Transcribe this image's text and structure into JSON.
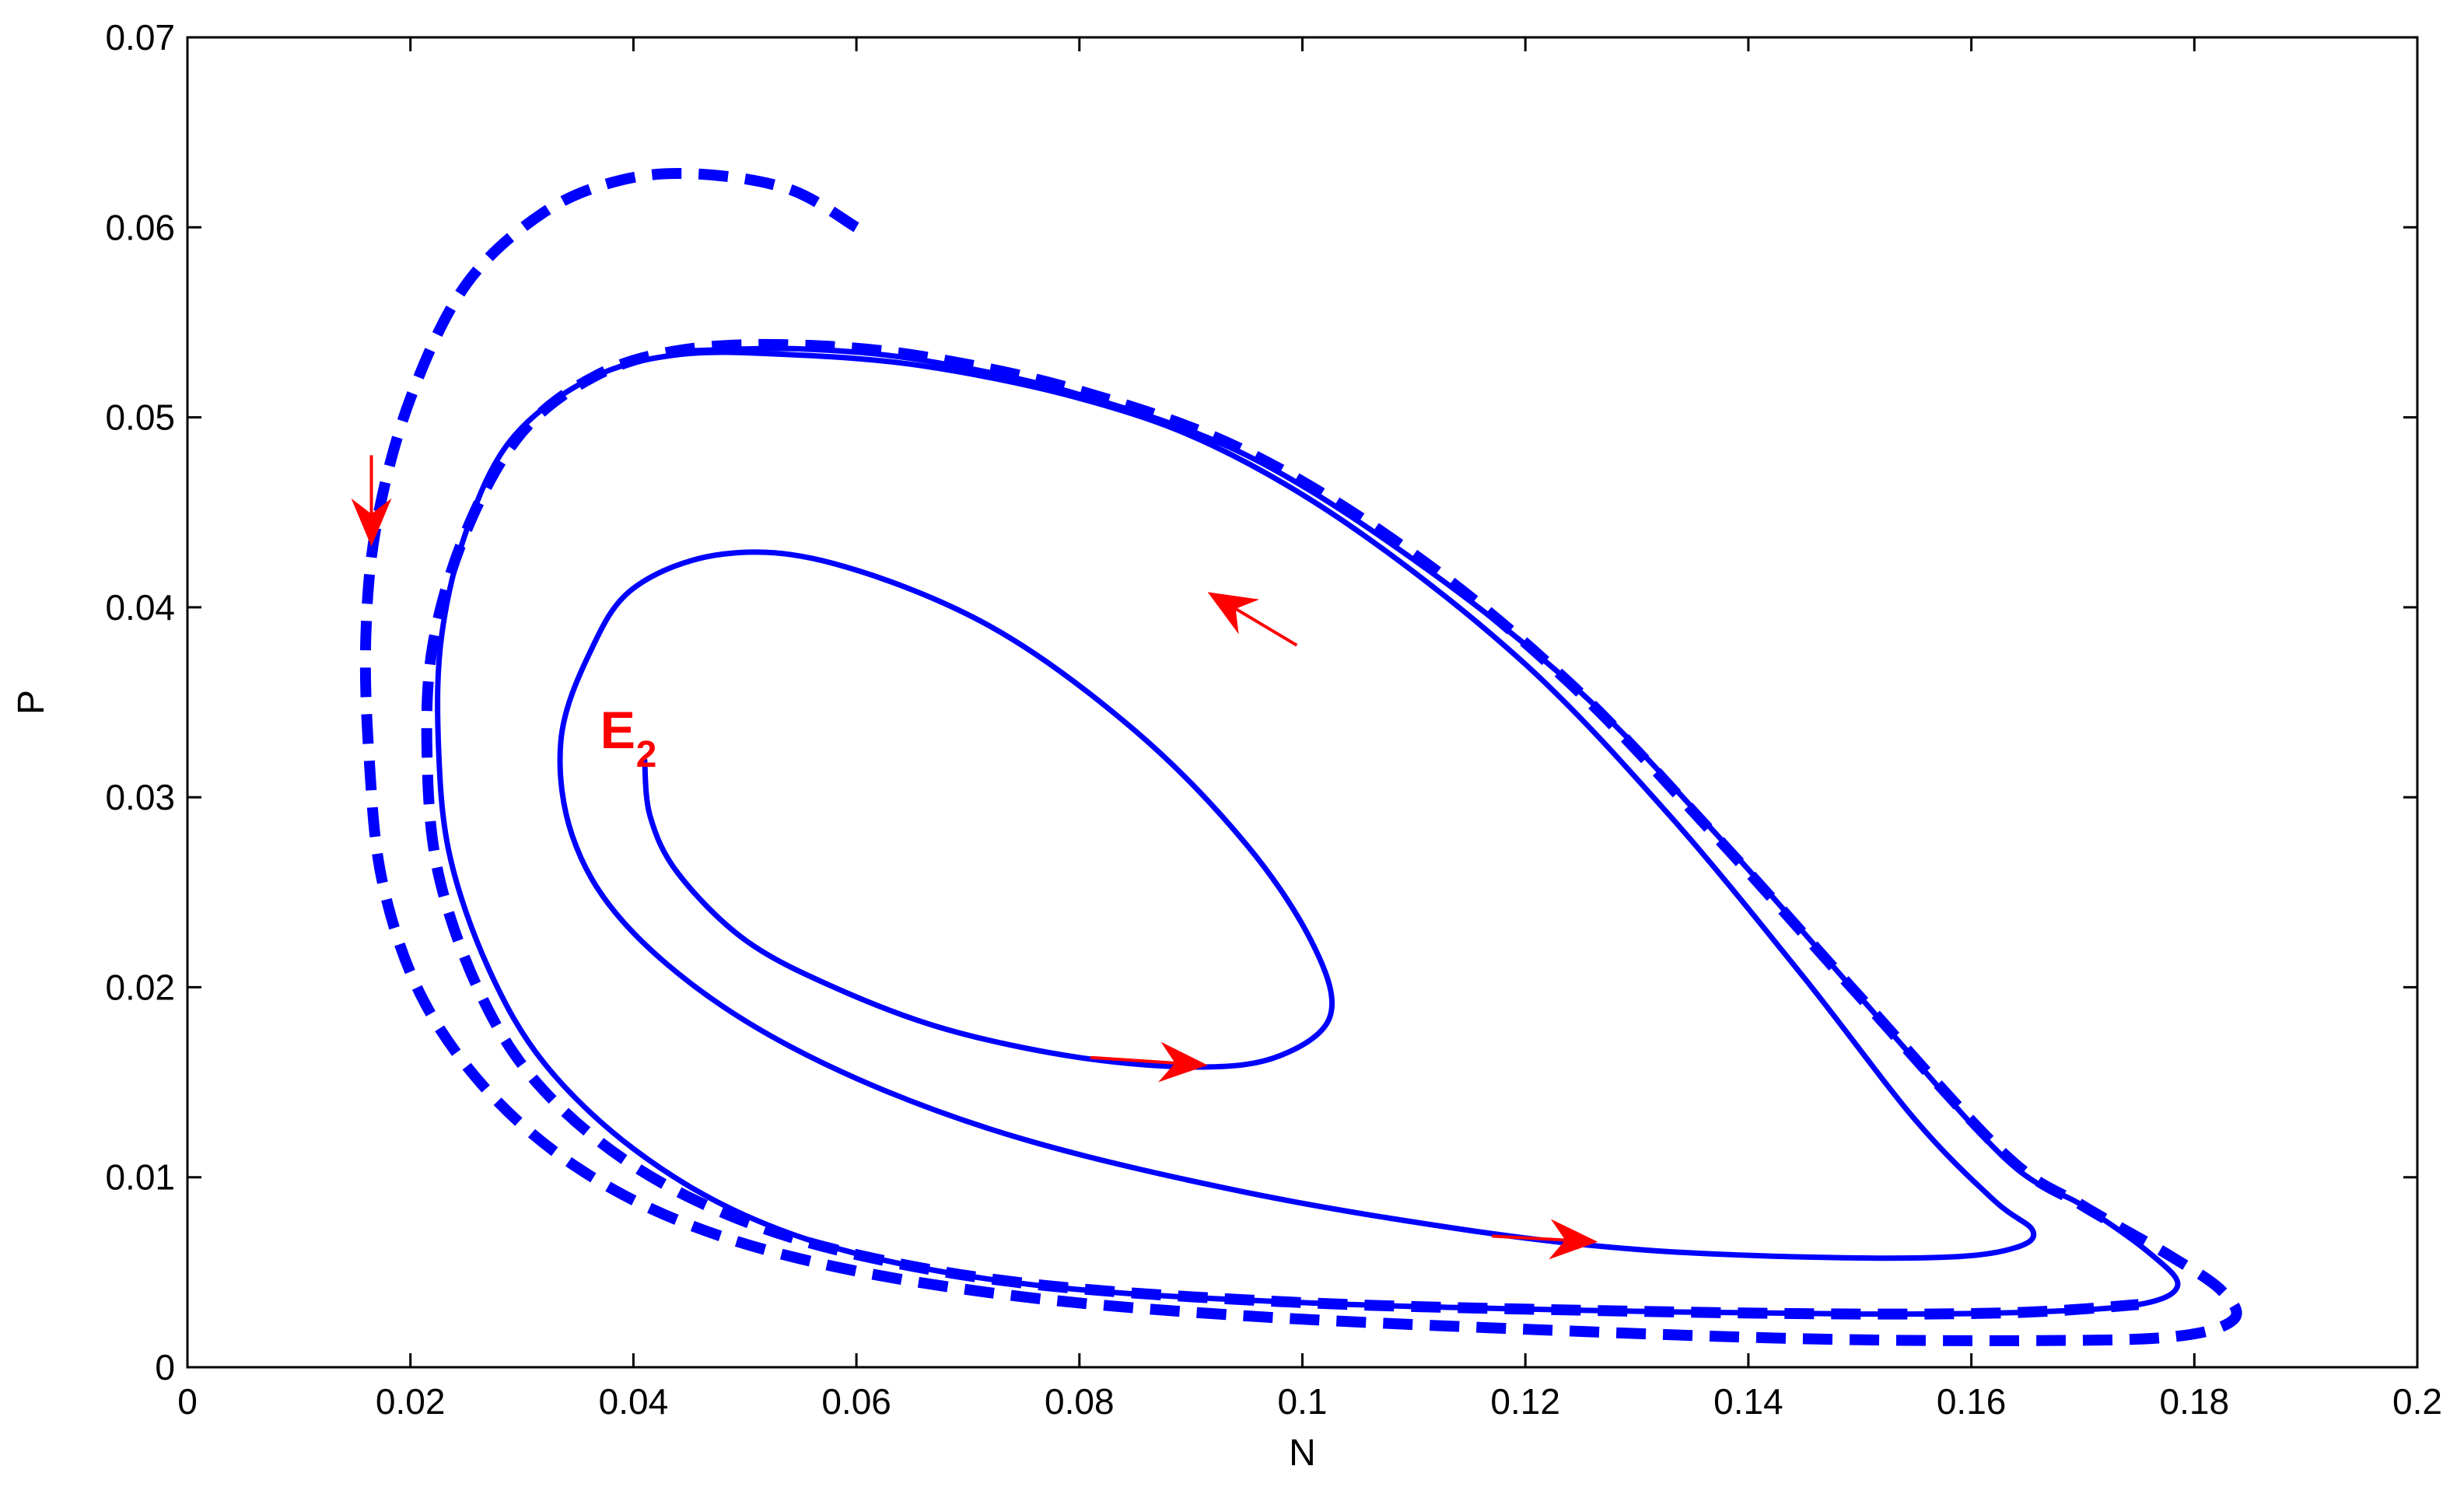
{
  "chart_data": {
    "type": "line",
    "title": "",
    "xlabel": "N",
    "ylabel": "P",
    "xlim": [
      0,
      0.2
    ],
    "ylim": [
      0,
      0.07
    ],
    "xticks": [
      0,
      0.02,
      0.04,
      0.06,
      0.08,
      0.1,
      0.12,
      0.14,
      0.16,
      0.18,
      0.2
    ],
    "xtick_labels": [
      "0",
      "0.02",
      "0.04",
      "0.06",
      "0.08",
      "0.1",
      "0.12",
      "0.14",
      "0.16",
      "0.18",
      "0.2"
    ],
    "yticks": [
      0,
      0.01,
      0.02,
      0.03,
      0.04,
      0.05,
      0.06,
      0.07
    ],
    "ytick_labels": [
      "0",
      "0.01",
      "0.02",
      "0.03",
      "0.04",
      "0.05",
      "0.06",
      "0.07"
    ],
    "grid": false,
    "colors": {
      "curve": "#0000ff",
      "arrow": "#ff0000",
      "annotation": "#ff0000"
    },
    "annotation": {
      "text": "E",
      "subscript": "2",
      "N": 0.0405,
      "P": 0.033
    },
    "series": [
      {
        "style": "solid",
        "points": [
          [
            0.041,
            0.032
          ],
          [
            0.0415,
            0.029
          ],
          [
            0.044,
            0.026
          ],
          [
            0.05,
            0.0225
          ],
          [
            0.058,
            0.02
          ],
          [
            0.068,
            0.0178
          ],
          [
            0.08,
            0.0163
          ],
          [
            0.091,
            0.0158
          ],
          [
            0.098,
            0.0164
          ],
          [
            0.1025,
            0.0185
          ],
          [
            0.101,
            0.0222
          ],
          [
            0.095,
            0.0275
          ],
          [
            0.085,
            0.0335
          ],
          [
            0.072,
            0.039
          ],
          [
            0.058,
            0.0423
          ],
          [
            0.048,
            0.0428
          ],
          [
            0.04,
            0.041
          ],
          [
            0.036,
            0.0375
          ],
          [
            0.0335,
            0.033
          ],
          [
            0.0345,
            0.028
          ],
          [
            0.039,
            0.0235
          ],
          [
            0.048,
            0.019
          ],
          [
            0.06,
            0.0152
          ],
          [
            0.075,
            0.012
          ],
          [
            0.095,
            0.0092
          ],
          [
            0.115,
            0.0072
          ],
          [
            0.13,
            0.0062
          ],
          [
            0.145,
            0.0058
          ],
          [
            0.158,
            0.0058
          ],
          [
            0.164,
            0.0063
          ],
          [
            0.1655,
            0.0072
          ],
          [
            0.162,
            0.0088
          ],
          [
            0.155,
            0.013
          ],
          [
            0.145,
            0.0205
          ],
          [
            0.133,
            0.029
          ],
          [
            0.12,
            0.037
          ],
          [
            0.105,
            0.044
          ],
          [
            0.092,
            0.0485
          ],
          [
            0.08,
            0.051
          ],
          [
            0.066,
            0.0527
          ],
          [
            0.054,
            0.0533
          ],
          [
            0.044,
            0.0533
          ],
          [
            0.036,
            0.052
          ],
          [
            0.029,
            0.0488
          ],
          [
            0.025,
            0.044
          ],
          [
            0.0228,
            0.0385
          ],
          [
            0.0225,
            0.033
          ],
          [
            0.0235,
            0.027
          ],
          [
            0.027,
            0.021
          ],
          [
            0.032,
            0.016
          ],
          [
            0.04,
            0.0115
          ],
          [
            0.05,
            0.008
          ],
          [
            0.062,
            0.0057
          ],
          [
            0.078,
            0.0042
          ],
          [
            0.1,
            0.0034
          ],
          [
            0.125,
            0.003
          ],
          [
            0.15,
            0.0028
          ],
          [
            0.165,
            0.0029
          ],
          [
            0.175,
            0.0033
          ],
          [
            0.1785,
            0.0043
          ],
          [
            0.176,
            0.006
          ],
          [
            0.17,
            0.0085
          ],
          [
            0.163,
            0.011
          ],
          [
            0.15,
            0.0195
          ],
          [
            0.138,
            0.0275
          ],
          [
            0.125,
            0.0355
          ],
          [
            0.11,
            0.0425
          ],
          [
            0.095,
            0.048
          ],
          [
            0.08,
            0.0512
          ],
          [
            0.066,
            0.053
          ],
          [
            0.055,
            0.0536
          ],
          [
            0.045,
            0.0535
          ]
        ]
      },
      {
        "style": "dashed",
        "points": [
          [
            0.06,
            0.06
          ],
          [
            0.054,
            0.062
          ],
          [
            0.046,
            0.0628
          ],
          [
            0.039,
            0.0625
          ],
          [
            0.032,
            0.0608
          ],
          [
            0.025,
            0.057
          ],
          [
            0.02,
            0.051
          ],
          [
            0.017,
            0.0445
          ],
          [
            0.016,
            0.0385
          ],
          [
            0.0163,
            0.032
          ],
          [
            0.0175,
            0.0255
          ],
          [
            0.021,
            0.0195
          ],
          [
            0.027,
            0.0145
          ],
          [
            0.035,
            0.0105
          ],
          [
            0.045,
            0.0075
          ],
          [
            0.058,
            0.0053
          ],
          [
            0.075,
            0.0037
          ],
          [
            0.095,
            0.0027
          ],
          [
            0.12,
            0.002
          ],
          [
            0.145,
            0.0015
          ],
          [
            0.165,
            0.0014
          ],
          [
            0.178,
            0.0016
          ],
          [
            0.1835,
            0.0025
          ],
          [
            0.1825,
            0.004
          ],
          [
            0.178,
            0.0058
          ],
          [
            0.17,
            0.0085
          ],
          [
            0.163,
            0.0112
          ],
          [
            0.15,
            0.0195
          ],
          [
            0.137,
            0.028
          ],
          [
            0.124,
            0.036
          ],
          [
            0.11,
            0.0428
          ],
          [
            0.095,
            0.0482
          ],
          [
            0.08,
            0.0514
          ],
          [
            0.066,
            0.0532
          ],
          [
            0.055,
            0.0538
          ],
          [
            0.045,
            0.0536
          ],
          [
            0.037,
            0.0523
          ],
          [
            0.03,
            0.0492
          ],
          [
            0.025,
            0.044
          ],
          [
            0.022,
            0.038
          ],
          [
            0.0215,
            0.032
          ],
          [
            0.0225,
            0.026
          ],
          [
            0.026,
            0.02
          ],
          [
            0.031,
            0.0152
          ],
          [
            0.039,
            0.011
          ],
          [
            0.049,
            0.0079
          ],
          [
            0.061,
            0.0058
          ],
          [
            0.077,
            0.0043
          ],
          [
            0.1,
            0.0034
          ],
          [
            0.125,
            0.003
          ],
          [
            0.15,
            0.0028
          ],
          [
            0.165,
            0.0029
          ],
          [
            0.175,
            0.0033
          ]
        ]
      }
    ],
    "arrows": [
      {
        "from": [
          0.081,
          0.0163
        ],
        "to": [
          0.0915,
          0.0159
        ]
      },
      {
        "from": [
          0.117,
          0.0069
        ],
        "to": [
          0.1265,
          0.0066
        ]
      },
      {
        "from": [
          0.0995,
          0.038
        ],
        "to": [
          0.0915,
          0.0408
        ]
      },
      {
        "from": [
          0.0165,
          0.048
        ],
        "to": [
          0.0165,
          0.0432
        ]
      }
    ]
  }
}
